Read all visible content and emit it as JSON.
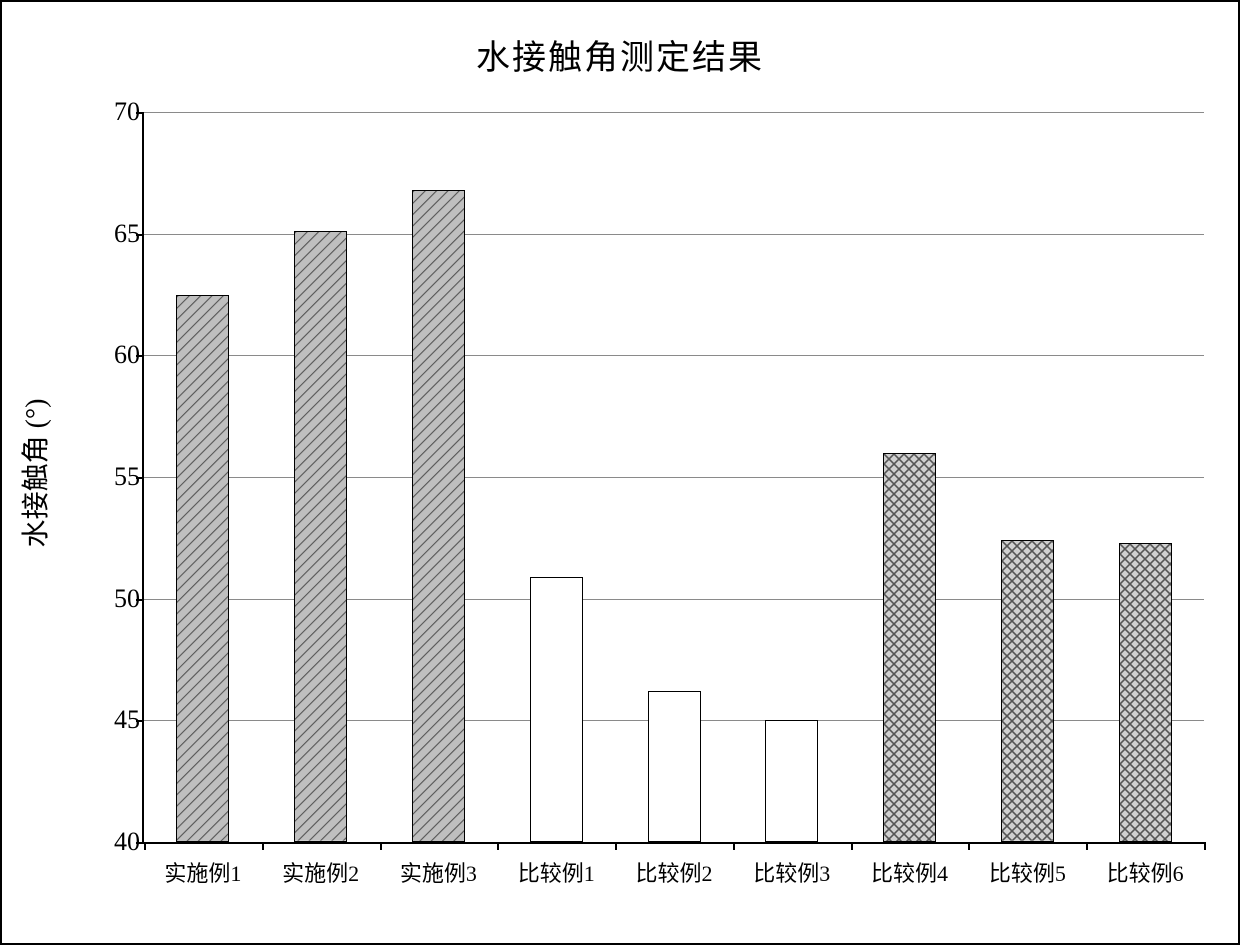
{
  "chart": {
    "type": "bar",
    "title": "水接触角测定结果",
    "title_fontsize": 34,
    "ylabel_main": "水接触角",
    "ylabel_unit": "(°)",
    "ylabel_fontsize": 28,
    "xlabel_fontsize": 22,
    "ytick_fontsize": 26,
    "ylim": [
      40,
      70
    ],
    "ytick_step": 5,
    "yticks": [
      40,
      45,
      50,
      55,
      60,
      65,
      70
    ],
    "background_color": "#ffffff",
    "grid_color": "#8a8a8a",
    "axis_color": "#000000",
    "bar_border_color": "#000000",
    "bar_width_ratio": 0.45,
    "patterns": {
      "diagonal": {
        "stroke": "#555555",
        "bg": "#bfbfbf"
      },
      "white": {
        "stroke": "none",
        "bg": "#ffffff"
      },
      "cross": {
        "stroke": "#555555",
        "bg": "#d0d0d0"
      }
    },
    "categories": [
      "实施例1",
      "实施例2",
      "实施例3",
      "比较例1",
      "比较例2",
      "比较例3",
      "比较例4",
      "比较例5",
      "比较例6"
    ],
    "values": [
      62.5,
      65.1,
      66.8,
      50.9,
      46.2,
      45.0,
      56.0,
      52.4,
      52.3
    ],
    "fill_pattern": [
      "diagonal",
      "diagonal",
      "diagonal",
      "white",
      "white",
      "white",
      "cross",
      "cross",
      "cross"
    ]
  }
}
